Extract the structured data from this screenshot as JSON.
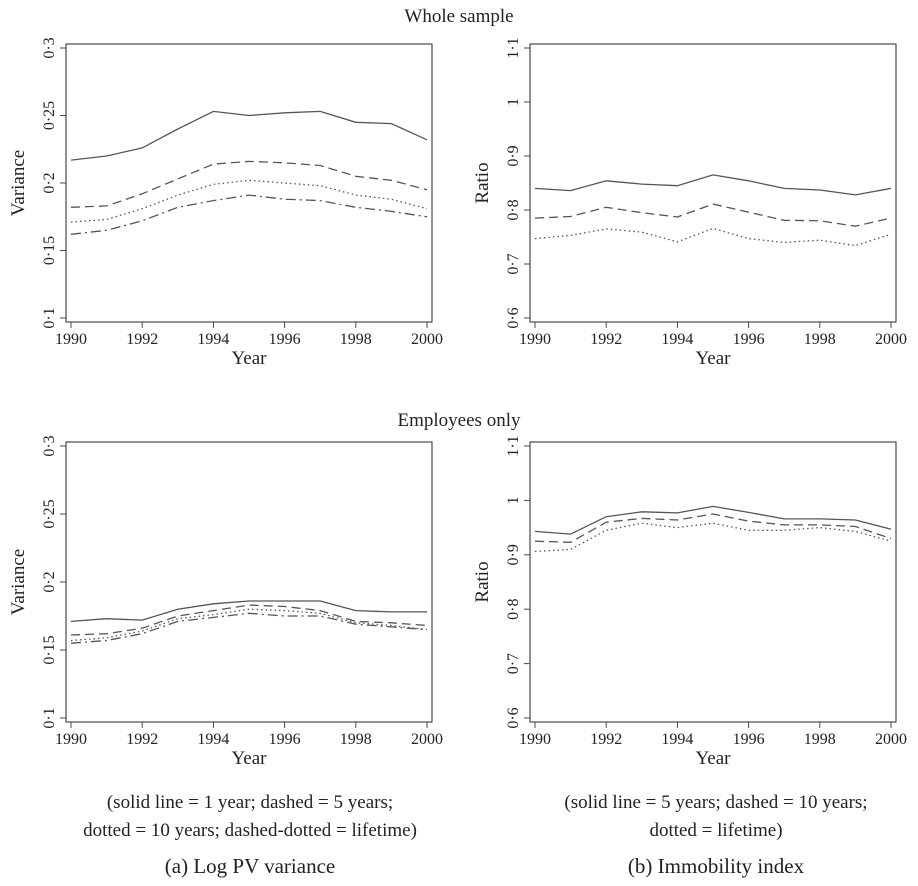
{
  "sections": {
    "top_title": "Whole sample",
    "bottom_title": "Employees only"
  },
  "captions": {
    "left_note_line1": "(solid line = 1 year; dashed = 5 years;",
    "left_note_line2": "dotted = 10 years; dashed-dotted = lifetime)",
    "left_title": "(a) Log PV variance",
    "right_note_line1": "(solid line = 5 years; dashed = 10 years;",
    "right_note_line2": "dotted = lifetime)",
    "right_title": "(b) Immobility index"
  },
  "chart_data": [
    {
      "id": "whole-variance",
      "type": "line",
      "xlabel": "Year",
      "ylabel": "Variance",
      "xlim": [
        1990,
        2000
      ],
      "ylim": [
        0.1,
        0.3
      ],
      "xticks": [
        "1990",
        "1992",
        "1994",
        "1996",
        "1998",
        "2000"
      ],
      "yticks": [
        "0·1",
        "0·15",
        "0·2",
        "0·25",
        "0·3"
      ],
      "x": [
        1990,
        1991,
        1992,
        1993,
        1994,
        1995,
        1996,
        1997,
        1998,
        1999,
        2000
      ],
      "series": [
        {
          "style": "solid",
          "values": [
            0.217,
            0.22,
            0.226,
            0.24,
            0.253,
            0.25,
            0.252,
            0.253,
            0.245,
            0.244,
            0.232
          ]
        },
        {
          "style": "dashed",
          "values": [
            0.182,
            0.183,
            0.192,
            0.203,
            0.214,
            0.216,
            0.215,
            0.213,
            0.205,
            0.202,
            0.195
          ]
        },
        {
          "style": "dotted",
          "values": [
            0.171,
            0.173,
            0.181,
            0.191,
            0.199,
            0.202,
            0.2,
            0.198,
            0.191,
            0.188,
            0.181
          ]
        },
        {
          "style": "dashdot",
          "values": [
            0.162,
            0.165,
            0.172,
            0.182,
            0.187,
            0.191,
            0.188,
            0.187,
            0.182,
            0.179,
            0.175
          ]
        }
      ]
    },
    {
      "id": "whole-ratio",
      "type": "line",
      "xlabel": "Year",
      "ylabel": "Ratio",
      "xlim": [
        1990,
        2000
      ],
      "ylim": [
        0.6,
        1.1
      ],
      "xticks": [
        "1990",
        "1992",
        "1994",
        "1996",
        "1998",
        "2000"
      ],
      "yticks": [
        "0·6",
        "0·7",
        "0·8",
        "0·9",
        "1",
        "1·1"
      ],
      "x": [
        1990,
        1991,
        1992,
        1993,
        1994,
        1995,
        1996,
        1997,
        1998,
        1999,
        2000
      ],
      "series": [
        {
          "style": "solid",
          "values": [
            0.84,
            0.836,
            0.854,
            0.848,
            0.845,
            0.865,
            0.854,
            0.84,
            0.837,
            0.828,
            0.84
          ]
        },
        {
          "style": "dashed",
          "values": [
            0.785,
            0.788,
            0.805,
            0.795,
            0.787,
            0.811,
            0.796,
            0.781,
            0.78,
            0.77,
            0.785
          ]
        },
        {
          "style": "dotted",
          "values": [
            0.747,
            0.753,
            0.765,
            0.759,
            0.741,
            0.766,
            0.747,
            0.74,
            0.744,
            0.734,
            0.755
          ]
        }
      ]
    },
    {
      "id": "employees-variance",
      "type": "line",
      "xlabel": "Year",
      "ylabel": "Variance",
      "xlim": [
        1990,
        2000
      ],
      "ylim": [
        0.1,
        0.3
      ],
      "xticks": [
        "1990",
        "1992",
        "1994",
        "1996",
        "1998",
        "2000"
      ],
      "yticks": [
        "0·1",
        "0·15",
        "0·2",
        "0·25",
        "0·3"
      ],
      "x": [
        1990,
        1991,
        1992,
        1993,
        1994,
        1995,
        1996,
        1997,
        1998,
        1999,
        2000
      ],
      "series": [
        {
          "style": "solid",
          "values": [
            0.171,
            0.173,
            0.172,
            0.18,
            0.184,
            0.186,
            0.186,
            0.186,
            0.179,
            0.178,
            0.178
          ]
        },
        {
          "style": "dashed",
          "values": [
            0.161,
            0.162,
            0.166,
            0.175,
            0.179,
            0.183,
            0.182,
            0.179,
            0.171,
            0.17,
            0.168
          ]
        },
        {
          "style": "dotted",
          "values": [
            0.157,
            0.159,
            0.164,
            0.173,
            0.176,
            0.18,
            0.179,
            0.177,
            0.17,
            0.168,
            0.165
          ]
        },
        {
          "style": "dashdot",
          "values": [
            0.155,
            0.157,
            0.162,
            0.171,
            0.174,
            0.177,
            0.175,
            0.175,
            0.169,
            0.167,
            0.165
          ]
        }
      ]
    },
    {
      "id": "employees-ratio",
      "type": "line",
      "xlabel": "Year",
      "ylabel": "Ratio",
      "xlim": [
        1990,
        2000
      ],
      "ylim": [
        0.6,
        1.1
      ],
      "xticks": [
        "1990",
        "1992",
        "1994",
        "1996",
        "1998",
        "2000"
      ],
      "yticks": [
        "0·6",
        "0·7",
        "0·8",
        "0·9",
        "1",
        "1·1"
      ],
      "x": [
        1990,
        1991,
        1992,
        1993,
        1994,
        1995,
        1996,
        1997,
        1998,
        1999,
        2000
      ],
      "series": [
        {
          "style": "solid",
          "values": [
            0.943,
            0.938,
            0.97,
            0.979,
            0.977,
            0.989,
            0.978,
            0.966,
            0.966,
            0.964,
            0.947
          ]
        },
        {
          "style": "dashed",
          "values": [
            0.925,
            0.923,
            0.96,
            0.967,
            0.964,
            0.975,
            0.962,
            0.955,
            0.955,
            0.952,
            0.93
          ]
        },
        {
          "style": "dotted",
          "values": [
            0.906,
            0.91,
            0.945,
            0.958,
            0.95,
            0.958,
            0.945,
            0.945,
            0.95,
            0.943,
            0.925
          ]
        }
      ]
    }
  ]
}
